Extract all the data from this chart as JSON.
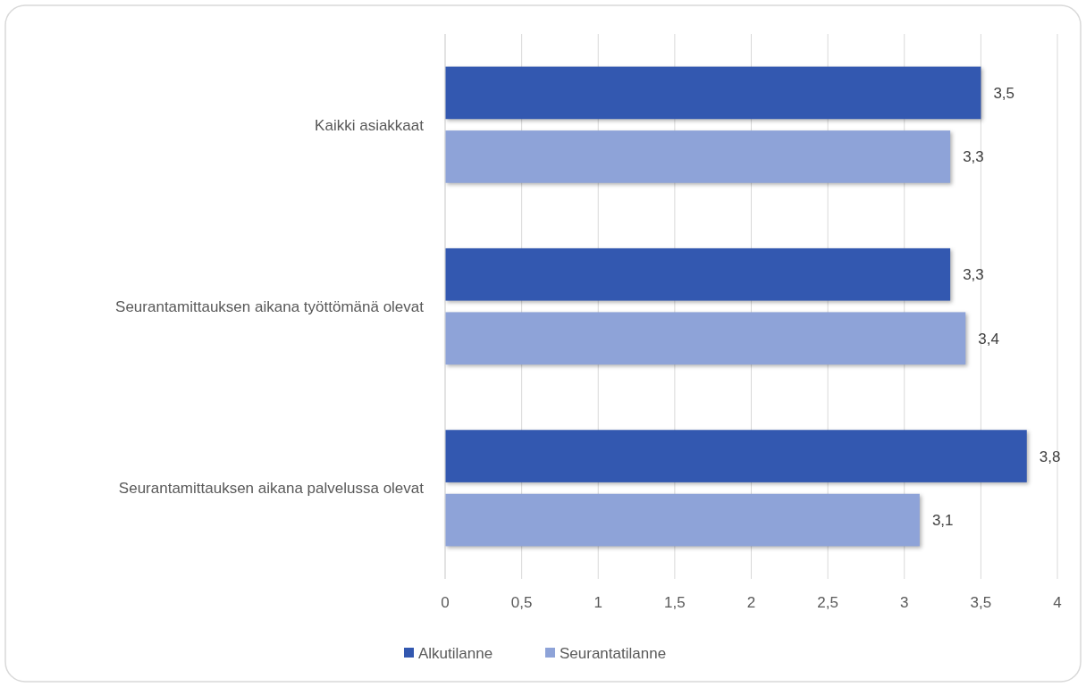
{
  "chart_data": {
    "type": "bar",
    "orientation": "horizontal",
    "categories": [
      "Kaikki asiakkaat",
      "Seurantamittauksen aikana työttömänä olevat",
      "Seurantamittauksen aikana palvelussa olevat"
    ],
    "series": [
      {
        "name": "Alkutilanne",
        "color": "#3358b0",
        "values": [
          3.5,
          3.3,
          3.8
        ],
        "value_labels": [
          "3,5",
          "3,3",
          "3,8"
        ]
      },
      {
        "name": "Seurantatilanne",
        "color": "#8ea3d8",
        "values": [
          3.3,
          3.4,
          3.1
        ],
        "value_labels": [
          "3,3",
          "3,4",
          "3,1"
        ]
      }
    ],
    "xlim": [
      0,
      4
    ],
    "xticks": [
      0,
      {
        "value": 0.5,
        "label": "0,5"
      },
      1,
      {
        "value": 1.5,
        "label": "1,5"
      },
      2,
      {
        "value": 2.5,
        "label": "2,5"
      },
      3,
      {
        "value": 3.5,
        "label": "3,5"
      },
      4
    ],
    "grid": "x",
    "legend": "bottom"
  }
}
